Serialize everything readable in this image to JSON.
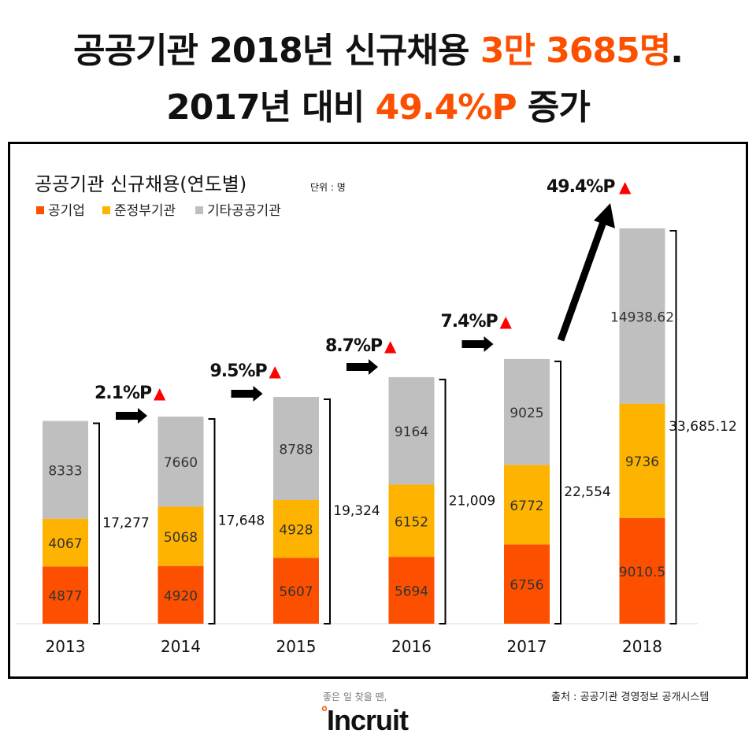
{
  "headline": {
    "line1_prefix": "공공기관 2018년 신규채용 ",
    "line1_accent": "3만 3685명",
    "line1_suffix": ".",
    "line2_prefix": "2017년 대비 ",
    "line2_accent": "49.4%P",
    "line2_suffix": " 증가"
  },
  "colors": {
    "public_enterprise": "#fc5000",
    "quasi_government": "#fdb300",
    "other_public": "#bfbfbf",
    "accent": "#fc5000",
    "up_triangle": "#ff0000"
  },
  "chart_data": {
    "type": "bar",
    "stacked": true,
    "title": "공공기관 신규채용(연도별)",
    "unit": "단위 : 명",
    "legend_placement": "top-left",
    "categories": [
      "2013",
      "2014",
      "2015",
      "2016",
      "2017",
      "2018"
    ],
    "series": [
      {
        "name": "공기업",
        "values": [
          4877,
          4920,
          5607,
          5694,
          6756,
          9010.5
        ],
        "labels": [
          "4877",
          "4920",
          "5607",
          "5694",
          "6756",
          "9010.5"
        ]
      },
      {
        "name": "준정부기관",
        "values": [
          4067,
          5068,
          4928,
          6152,
          6772,
          9736
        ],
        "labels": [
          "4067",
          "5068",
          "4928",
          "6152",
          "6772",
          "9736"
        ]
      },
      {
        "name": "기타공공기관",
        "values": [
          8333,
          7660,
          8788,
          9164,
          9025,
          14938.62
        ],
        "labels": [
          "8333",
          "7660",
          "8788",
          "9164",
          "9025",
          "14938.62"
        ]
      }
    ],
    "totals": [
      17277,
      17648,
      19324,
      21009,
      22554,
      33685.12
    ],
    "total_labels": [
      "17,277",
      "17,648",
      "19,324",
      "21,009",
      "22,554",
      "33,685.12"
    ],
    "growth_labels": [
      "2.1%P",
      "9.5%P",
      "8.7%P",
      "7.4%P",
      "49.4%P"
    ],
    "up_symbol": "▲",
    "ylim": [
      0,
      34000
    ],
    "grid": false
  },
  "footer": {
    "source": "출처 : 공공기관 경영정보 공개시스템",
    "tagline": "좋은 일 찾을 땐,",
    "logo": "Incruit"
  }
}
